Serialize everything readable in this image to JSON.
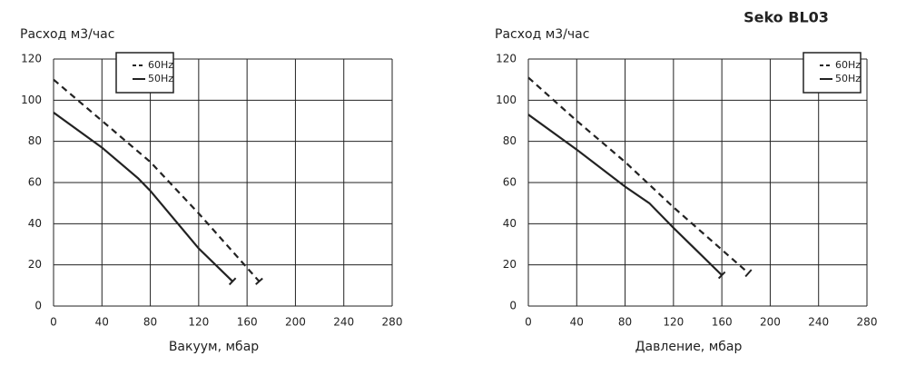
{
  "title": "Seko BL03",
  "chart_data": [
    {
      "type": "line",
      "ylabel": "Расход м3/час",
      "xlabel": "Вакуум, мбар",
      "xlim": [
        0,
        280
      ],
      "xticks": [
        0,
        40,
        80,
        120,
        160,
        200,
        240,
        280
      ],
      "ylim": [
        0,
        120
      ],
      "yticks": [
        0,
        20,
        40,
        60,
        80,
        100,
        120
      ],
      "grid": true,
      "legend": "upper left",
      "series": [
        {
          "name": "60Hz",
          "color": "#222222",
          "dashed": true,
          "x": [
            0,
            40,
            80,
            120,
            170
          ],
          "values": [
            110,
            90,
            70,
            45,
            12
          ]
        },
        {
          "name": "50Hz",
          "color": "#222222",
          "dashed": false,
          "x": [
            0,
            40,
            70,
            80,
            120,
            148
          ],
          "values": [
            94,
            77,
            62,
            56,
            28,
            12
          ]
        }
      ]
    },
    {
      "type": "line",
      "ylabel": "Расход м3/час",
      "xlabel": "Давление, мбар",
      "xlim": [
        0,
        280
      ],
      "xticks": [
        0,
        40,
        80,
        120,
        160,
        200,
        240,
        280
      ],
      "ylim": [
        0,
        120
      ],
      "yticks": [
        0,
        20,
        40,
        60,
        80,
        100,
        120
      ],
      "grid": true,
      "legend": "upper right",
      "series": [
        {
          "name": "60Hz",
          "color": "#222222",
          "dashed": true,
          "x": [
            0,
            40,
            80,
            120,
            182
          ],
          "values": [
            111,
            90,
            70,
            48,
            16
          ]
        },
        {
          "name": "50Hz",
          "color": "#222222",
          "dashed": false,
          "x": [
            0,
            40,
            80,
            100,
            120,
            160
          ],
          "values": [
            93,
            76,
            58,
            50,
            38,
            15
          ]
        }
      ]
    }
  ]
}
